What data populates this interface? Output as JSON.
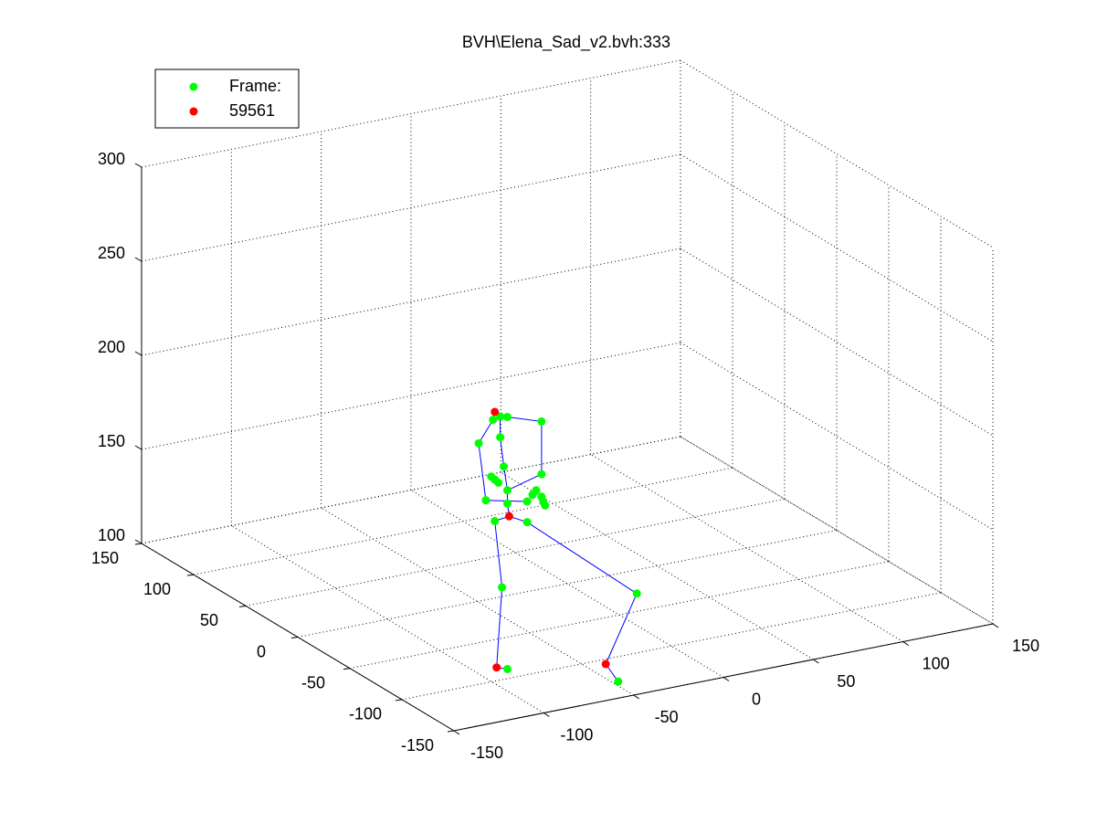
{
  "chart_data": {
    "type": "scatter3d",
    "title": "BVH\\Elena_Sad_v2.bvh:333",
    "xlim": [
      -150,
      150
    ],
    "ylim": [
      -150,
      150
    ],
    "zlim": [
      100,
      300
    ],
    "xticks": [
      -150,
      -100,
      -50,
      0,
      50,
      100,
      150
    ],
    "yticks": [
      -150,
      -100,
      -50,
      0,
      50,
      100,
      150
    ],
    "zticks": [
      100,
      150,
      200,
      250,
      300
    ],
    "grid": true,
    "legend_loc": "northwest",
    "series": [
      {
        "name": "Frame:",
        "color": "#00ff00",
        "style": "marker",
        "x": [
          -90,
          -86,
          -82,
          -63,
          -98,
          -86,
          -84,
          -63,
          -91,
          -89,
          -87,
          -82,
          -94,
          -82,
          -71,
          -68,
          -66,
          -62,
          -61,
          -63,
          -89,
          -71,
          -85,
          -25,
          -82,
          -47
        ],
        "y": [
          -84,
          -84,
          -84,
          -84,
          -84,
          -84,
          -84,
          -84,
          -84,
          -84,
          -84,
          -84,
          -84,
          -84,
          -84,
          -84,
          -84,
          -84,
          -84,
          -84,
          -84,
          -84,
          -84,
          -110,
          -84,
          -130
        ],
        "z": [
          232,
          233,
          232,
          226,
          221,
          222,
          206,
          198,
          202,
          200,
          198,
          193,
          190,
          186,
          185,
          188,
          190,
          183,
          181,
          186,
          178,
          174,
          142,
          136,
          98,
          100
        ]
      },
      {
        "name": "59561",
        "color": "#ff0000",
        "style": "marker",
        "x": [
          -89,
          -81,
          -88,
          -40
        ],
        "y": [
          -84,
          -84,
          -84,
          -106
        ],
        "z": [
          236,
          179,
          100,
          100
        ]
      },
      {
        "color": "#0000ff",
        "style": "line",
        "x": [
          -82,
          -88,
          -85,
          -89,
          -81,
          -71,
          -25,
          -40,
          -47,
          null,
          -81,
          -82,
          -82,
          -84,
          -86,
          -86,
          -89,
          null,
          -90,
          -98,
          -94,
          -71,
          null,
          -90,
          -86,
          -82,
          -63,
          -63,
          -82
        ],
        "y": [
          -84,
          -84,
          -84,
          -84,
          -84,
          -84,
          -110,
          -106,
          -130,
          null,
          -84,
          -84,
          -84,
          -84,
          -84,
          -84,
          -84,
          null,
          -84,
          -84,
          -84,
          -84,
          null,
          -84,
          -84,
          -84,
          -84,
          -84,
          -84
        ],
        "z": [
          98,
          100,
          142,
          178,
          179,
          174,
          136,
          100,
          100,
          null,
          179,
          186,
          193,
          206,
          222,
          233,
          236,
          null,
          232,
          221,
          190,
          185,
          null,
          232,
          233,
          232,
          226,
          198,
          193
        ]
      }
    ]
  }
}
